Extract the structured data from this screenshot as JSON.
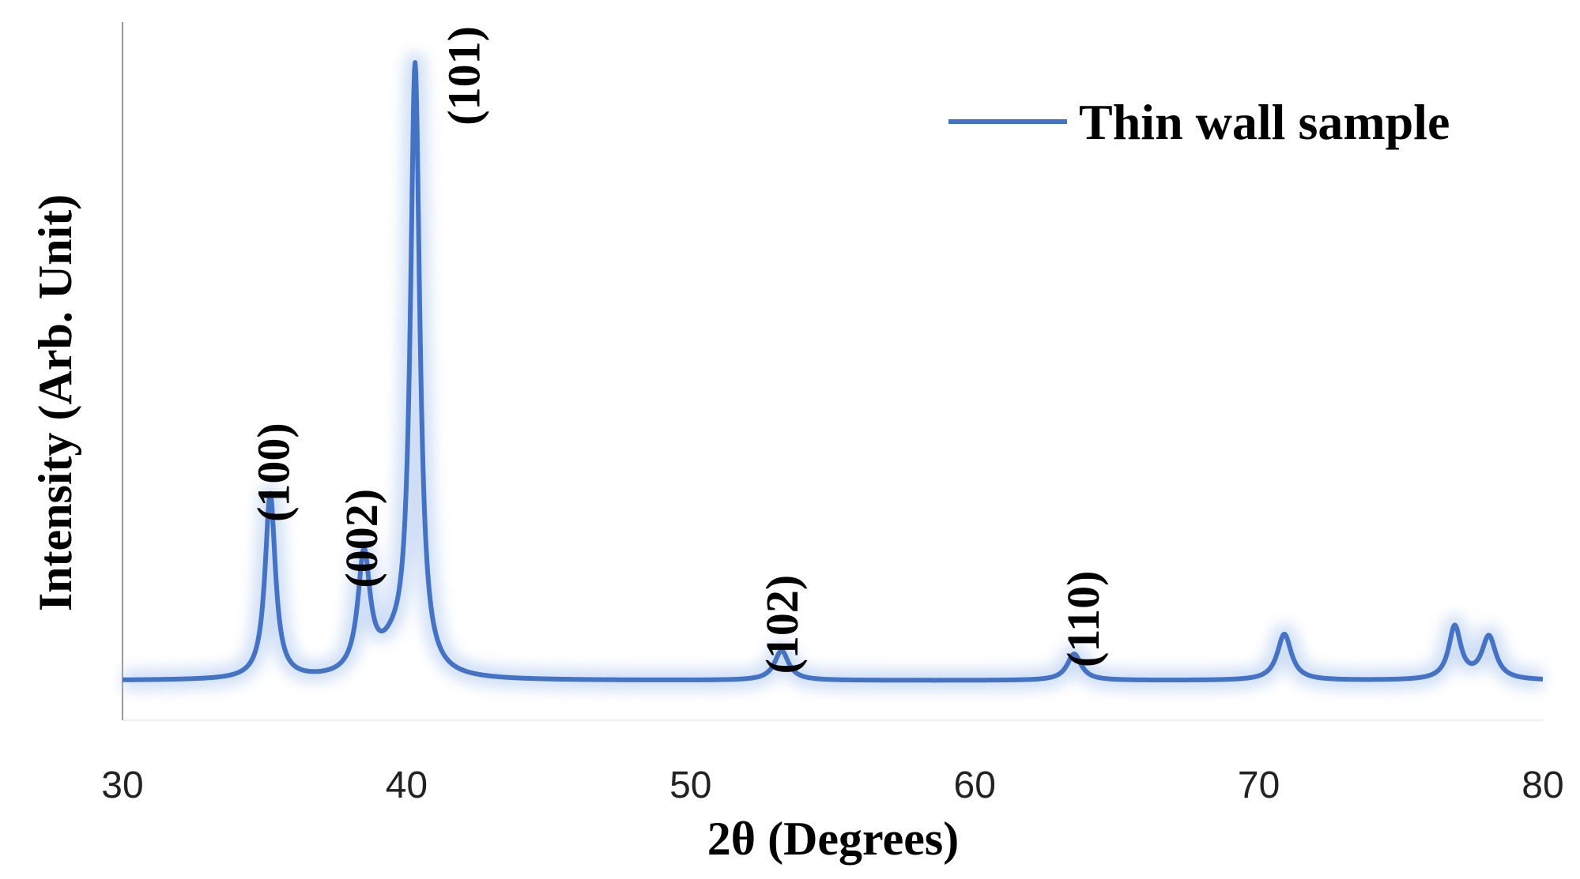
{
  "chart_data": {
    "type": "line",
    "xlabel": "2θ (Degrees)",
    "ylabel": "Intensity (Arb. Unit)",
    "xlim": [
      30,
      80
    ],
    "ylim": [
      0,
      100
    ],
    "xticks": [
      30,
      40,
      50,
      60,
      70,
      80
    ],
    "xtick_labels": [
      "30",
      "40",
      "50",
      "60",
      "70",
      "80"
    ],
    "grid": false,
    "legend_position": "top-right",
    "series": [
      {
        "name": "Thin wall sample",
        "color": "#4472C4",
        "baseline": 6,
        "peaks": [
          {
            "x": 35.2,
            "height": 28,
            "width": 0.22
          },
          {
            "x": 38.5,
            "height": 18,
            "width": 0.26
          },
          {
            "x": 39.5,
            "height": 3,
            "width": 0.6
          },
          {
            "x": 40.3,
            "height": 92,
            "width": 0.2
          },
          {
            "x": 53.2,
            "height": 4.5,
            "width": 0.3
          },
          {
            "x": 63.5,
            "height": 4,
            "width": 0.3
          },
          {
            "x": 70.9,
            "height": 7,
            "width": 0.3
          },
          {
            "x": 76.9,
            "height": 8,
            "width": 0.26
          },
          {
            "x": 78.1,
            "height": 6.5,
            "width": 0.3
          }
        ]
      }
    ],
    "annotations": [
      {
        "text": "(100)",
        "x": 35.3,
        "y": 30
      },
      {
        "text": "(002)",
        "x": 38.4,
        "y": 20
      },
      {
        "text": "(101)",
        "x": 42.0,
        "y": 90
      },
      {
        "text": "(102)",
        "x": 53.2,
        "y": 7
      },
      {
        "text": "(110)",
        "x": 63.8,
        "y": 8
      }
    ]
  }
}
